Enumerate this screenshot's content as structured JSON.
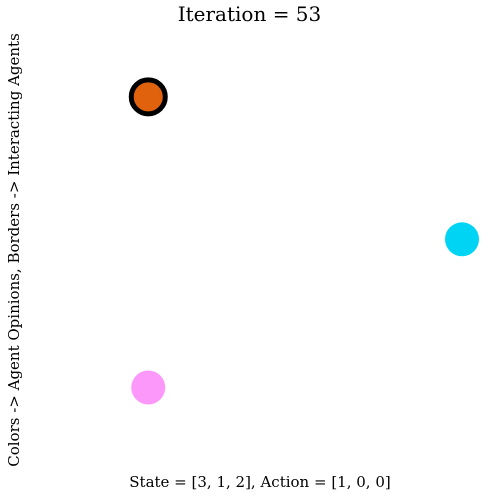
{
  "chart_data": {
    "type": "scatter",
    "title": "Iteration = 53",
    "xlabel": "State = [3, 1, 2], Action = [1, 0, 0]",
    "ylabel": "Colors -> Agent Opinions, Borders -> Interacting Agents",
    "axes_visible": false,
    "grid": false,
    "xlim": [
      0,
      1
    ],
    "ylim": [
      0,
      1
    ],
    "points": [
      {
        "agent": 0,
        "x": 0.055,
        "y": 0.855,
        "color": "#e1620c",
        "border": true,
        "border_color": "#000000"
      },
      {
        "agent": 1,
        "x": 1.0,
        "y": 0.485,
        "color": "#00d4f4",
        "border": false,
        "border_color": "#000000"
      },
      {
        "agent": 2,
        "x": 0.055,
        "y": 0.1,
        "color": "#fb98f9",
        "border": false,
        "border_color": "#000000"
      }
    ]
  }
}
